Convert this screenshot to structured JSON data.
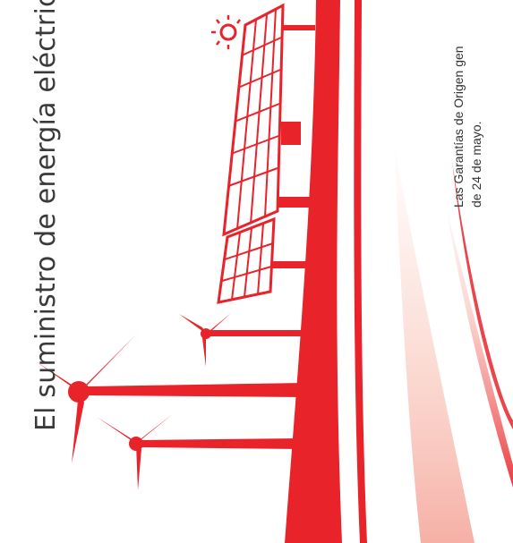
{
  "document": {
    "title": "El suministro de energía eléctrica",
    "body_lines": [
      "Las Garantías de Origen gen",
      "de 24 de mayo."
    ]
  },
  "colors": {
    "accent_red": "#e8232a",
    "text": "#3a3a3a",
    "background": "#ffffff"
  },
  "illustration": {
    "elements": [
      "wind-turbine",
      "wind-turbine",
      "wind-turbine",
      "solar-panel",
      "sun-icon",
      "road-curve"
    ]
  }
}
